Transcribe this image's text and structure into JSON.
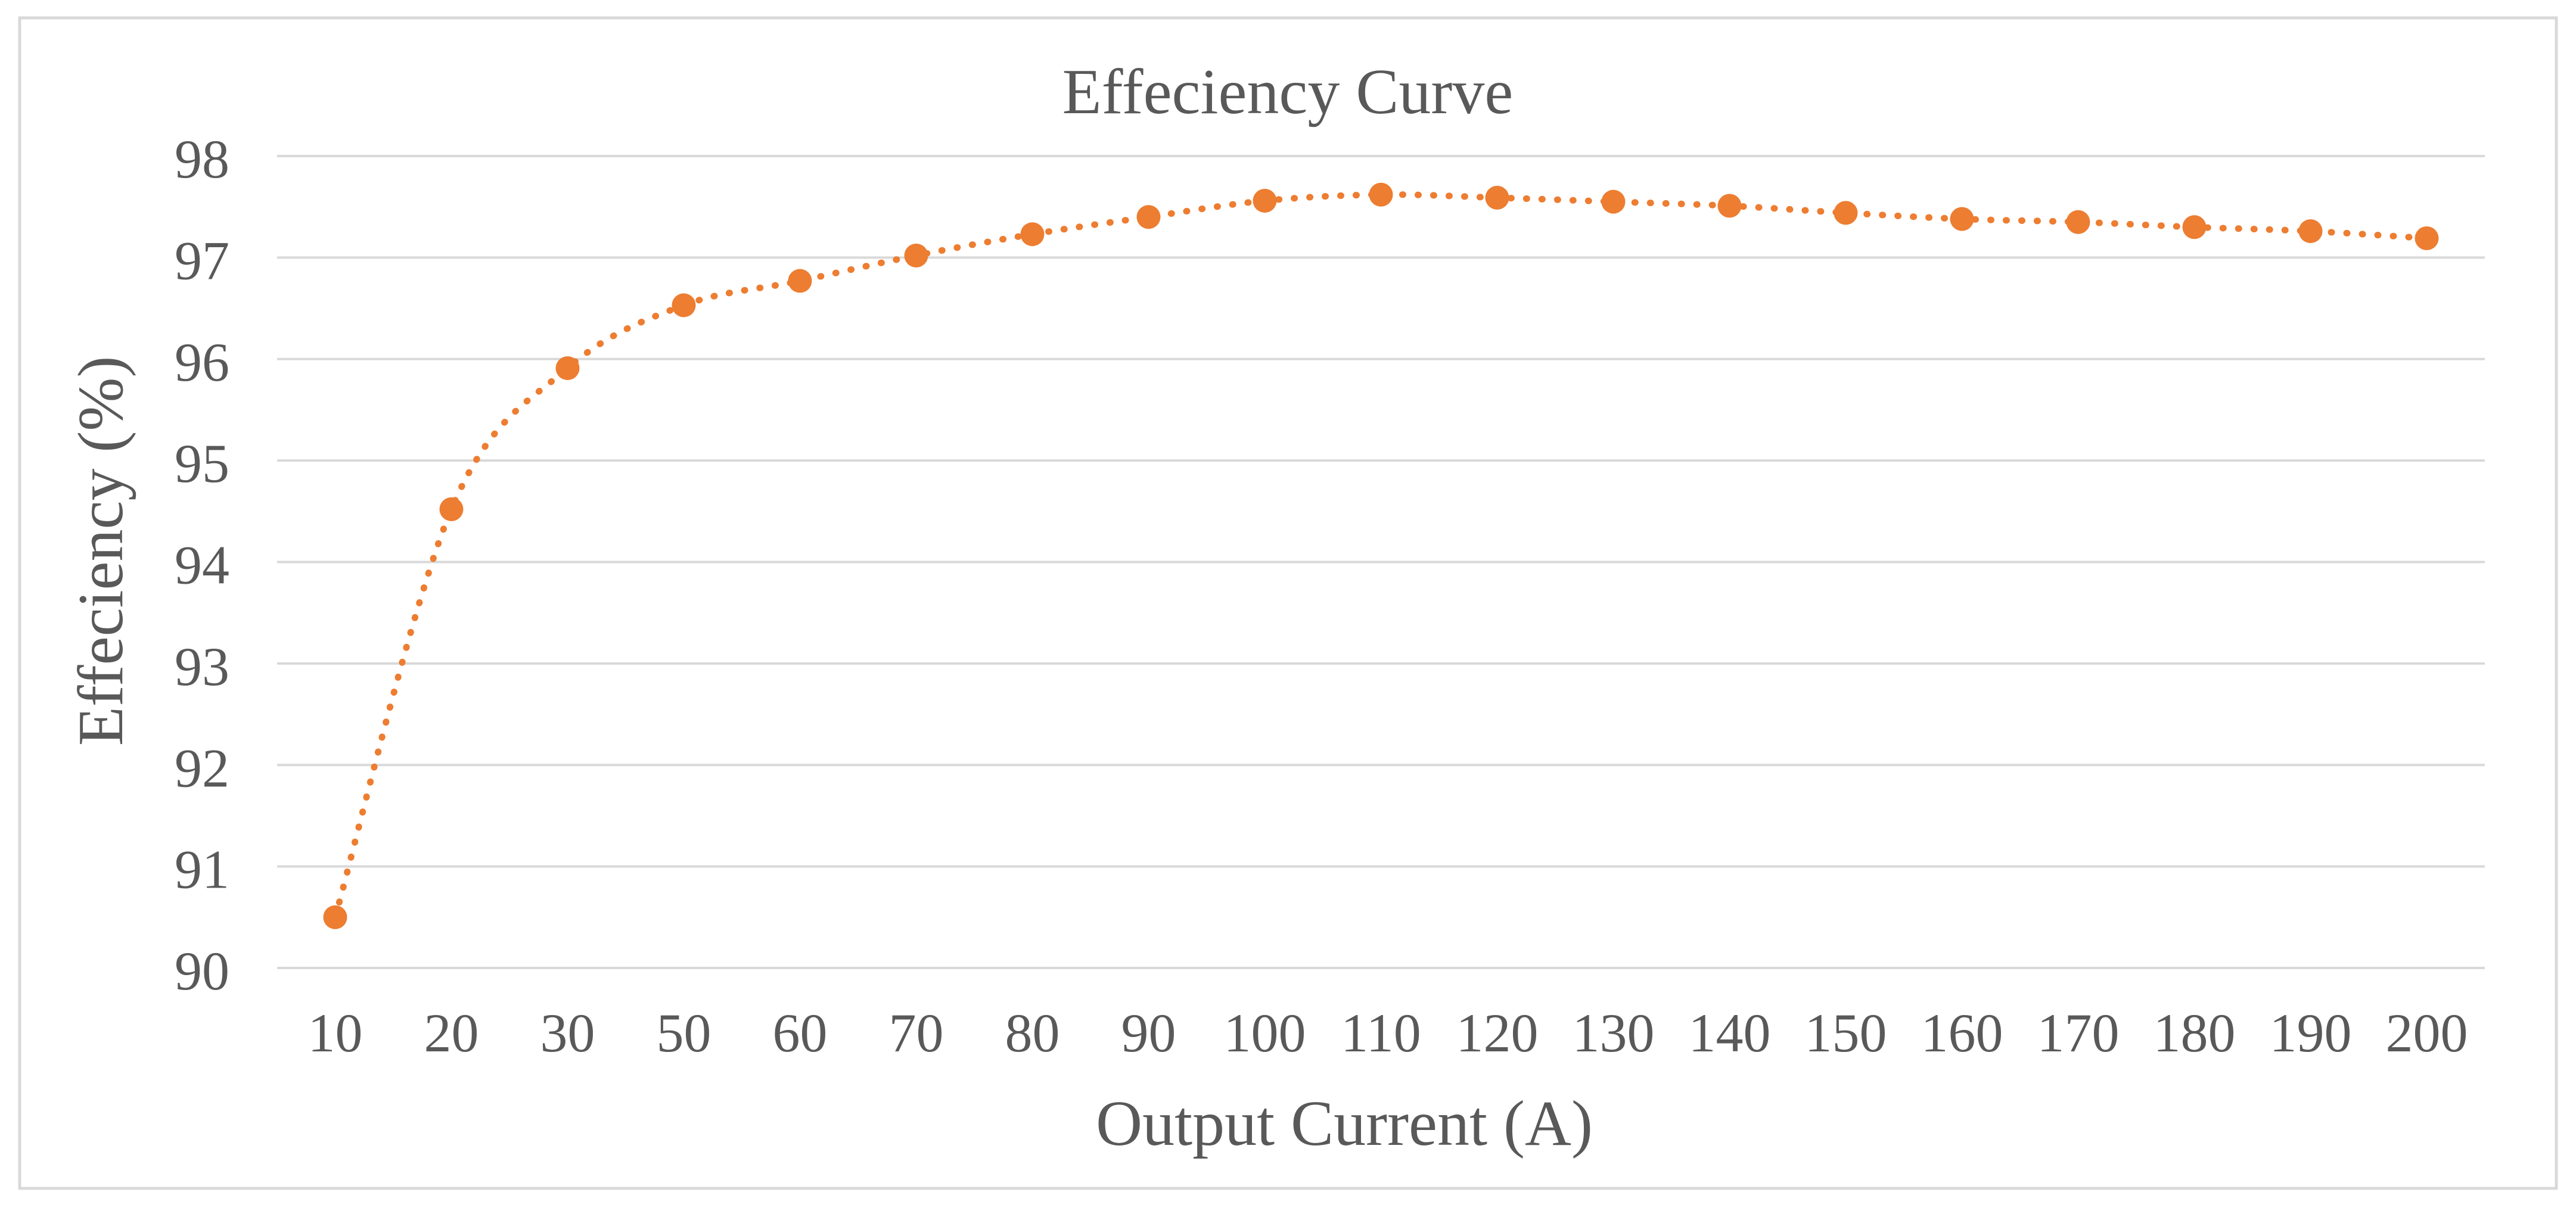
{
  "chart_data": {
    "type": "line",
    "title": "Effeciency Curve",
    "xlabel": "Output Current (A)",
    "ylabel": "Effeciency (%)",
    "categories": [
      "10",
      "20",
      "30",
      "50",
      "60",
      "70",
      "80",
      "90",
      "100",
      "110",
      "120",
      "130",
      "140",
      "150",
      "160",
      "170",
      "180",
      "190",
      "200"
    ],
    "series": [
      {
        "name": "Effeciency",
        "values": [
          90.5,
          94.52,
          95.91,
          96.53,
          96.77,
          97.02,
          97.23,
          97.4,
          97.56,
          97.62,
          97.59,
          97.55,
          97.51,
          97.44,
          97.38,
          97.35,
          97.3,
          97.26,
          97.19
        ]
      }
    ],
    "ylim": [
      90,
      98
    ],
    "yticks": [
      90,
      91,
      92,
      93,
      94,
      95,
      96,
      97,
      98
    ],
    "grid": true,
    "line_style": "dotted",
    "marker": "circle",
    "colors": {
      "series": "#ED7D31",
      "grid": "#D9D9D9",
      "text": "#595959",
      "border": "#D9D9D9",
      "background": "#FFFFFF"
    }
  }
}
